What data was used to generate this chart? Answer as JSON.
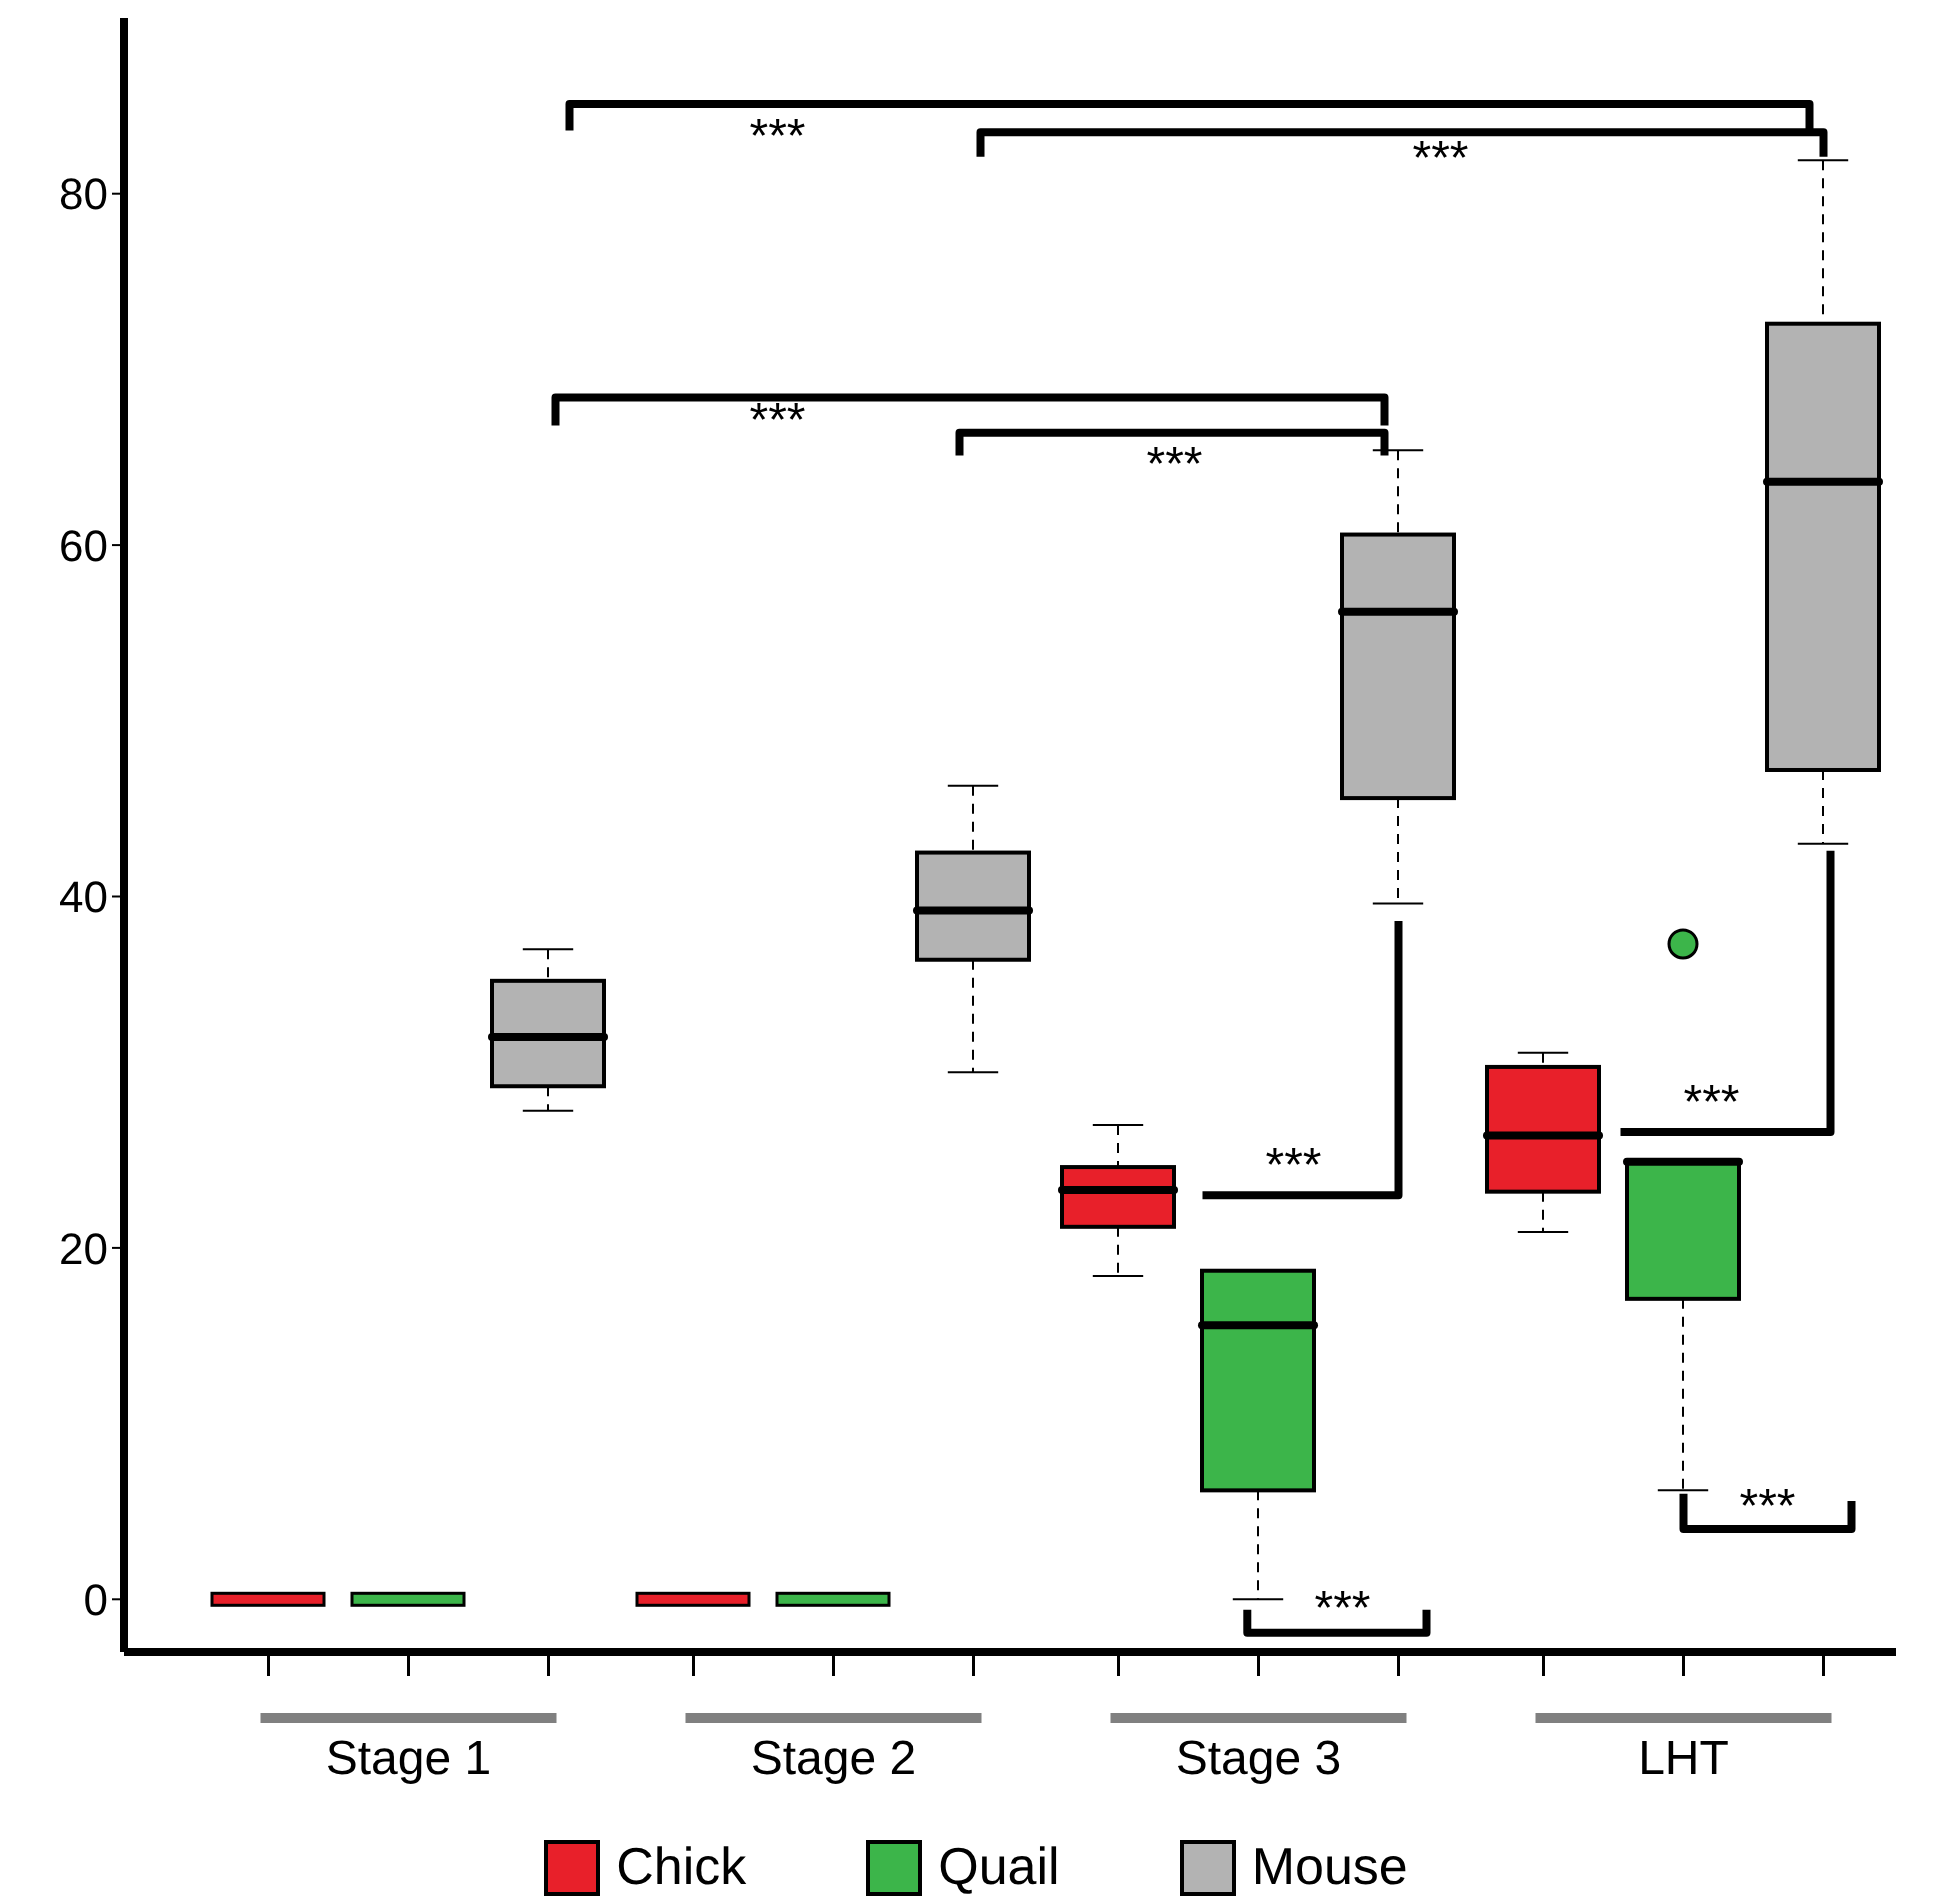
{
  "chart_data": {
    "type": "box",
    "categories": [
      "Stage 1",
      "Stage 2",
      "Stage 3",
      "LHT"
    ],
    "series": [
      {
        "name": "Chick",
        "color": "#e8202a",
        "boxes": [
          {
            "low": 0,
            "q1": 0,
            "median": 0,
            "q3": 0,
            "high": 0
          },
          {
            "low": 0,
            "q1": 0,
            "median": 0,
            "q3": 0,
            "high": 0
          },
          {
            "low": 18.4,
            "q1": 21.2,
            "median": 23.3,
            "q3": 24.6,
            "high": 27
          },
          {
            "low": 20.9,
            "q1": 23.2,
            "median": 26.4,
            "q3": 30.3,
            "high": 31.1
          }
        ]
      },
      {
        "name": "Quail",
        "color": "#3cb54a",
        "boxes": [
          {
            "low": 0,
            "q1": 0,
            "median": 0,
            "q3": 0,
            "high": 0
          },
          {
            "low": 0,
            "q1": 0,
            "median": 0,
            "q3": 0,
            "high": 0
          },
          {
            "low": 0,
            "q1": 6.2,
            "median": 15.6,
            "q3": 18.7,
            "high": 18.7
          },
          {
            "low": 6.2,
            "q1": 17.1,
            "median": 24.9,
            "q3": 25,
            "high": 25,
            "outliers": [
              37.3
            ]
          }
        ]
      },
      {
        "name": "Mouse",
        "color": "#b3b3b3",
        "boxes": [
          {
            "low": 27.8,
            "q1": 29.2,
            "median": 32,
            "q3": 35.2,
            "high": 37
          },
          {
            "low": 30,
            "q1": 36.4,
            "median": 39.2,
            "q3": 42.5,
            "high": 46.3
          },
          {
            "low": 39.6,
            "q1": 45.6,
            "median": 56.2,
            "q3": 60.6,
            "high": 65.4
          },
          {
            "low": 43,
            "q1": 47.2,
            "median": 63.6,
            "q3": 72.6,
            "high": 81.9
          }
        ]
      }
    ],
    "ylim": [
      -3,
      90
    ],
    "yticks": [
      0,
      20,
      40,
      60,
      80
    ],
    "legend": "bottom",
    "annotations": [
      "***",
      "***",
      "***",
      "***",
      "***",
      "***",
      "***",
      "***"
    ]
  }
}
